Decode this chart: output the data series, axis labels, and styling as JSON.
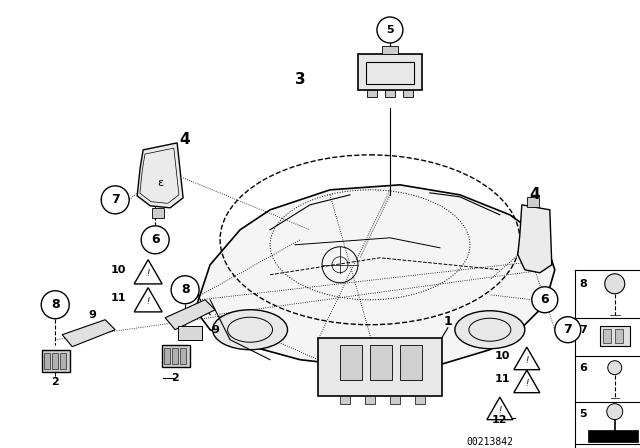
{
  "bg_color": "#ffffff",
  "diagram_id": "00213842",
  "fig_width": 6.4,
  "fig_height": 4.48,
  "dpi": 100,
  "line_color": "#000000",
  "text_color": "#000000"
}
